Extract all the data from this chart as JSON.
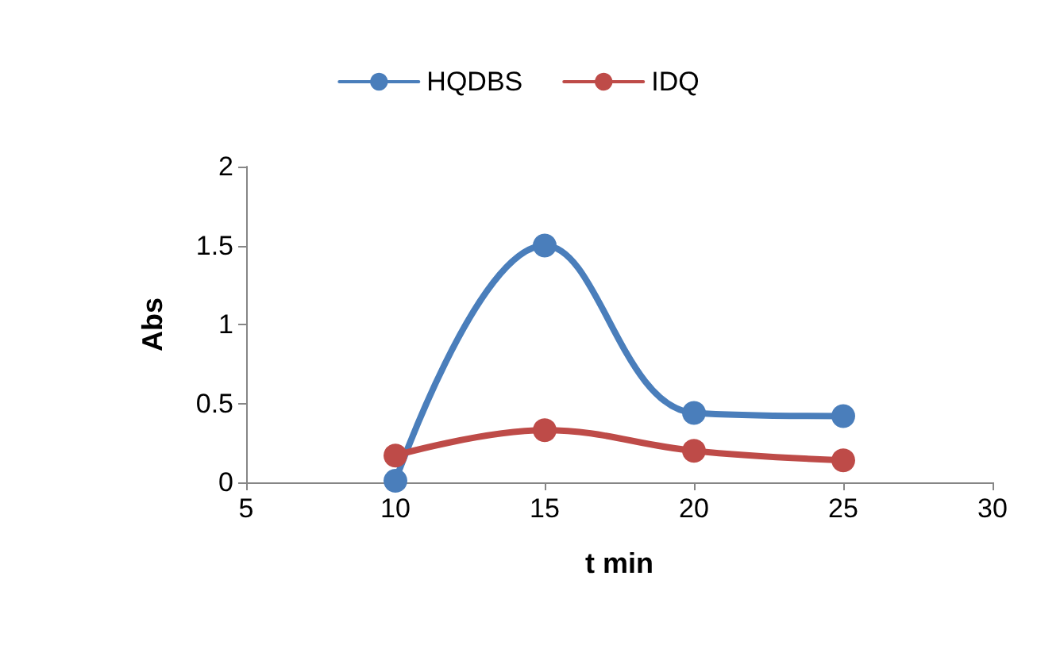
{
  "chart_data": {
    "type": "line",
    "xlabel": "t min",
    "ylabel": "Abs",
    "x": [
      10,
      15,
      20,
      25
    ],
    "series": [
      {
        "name": "HQDBS",
        "color": "#4a7ebb",
        "values": [
          0.01,
          1.5,
          0.44,
          0.42
        ]
      },
      {
        "name": "IDQ",
        "color": "#be4b48",
        "values": [
          0.17,
          0.33,
          0.2,
          0.14
        ]
      }
    ],
    "xlim": [
      5,
      30
    ],
    "xticks": [
      5,
      10,
      15,
      20,
      25,
      30
    ],
    "ylim": [
      0,
      2
    ],
    "yticks": [
      0,
      0.5,
      1,
      1.5,
      2
    ],
    "grid": false,
    "legend": "top",
    "marker": "circle",
    "line_style": "solid"
  }
}
